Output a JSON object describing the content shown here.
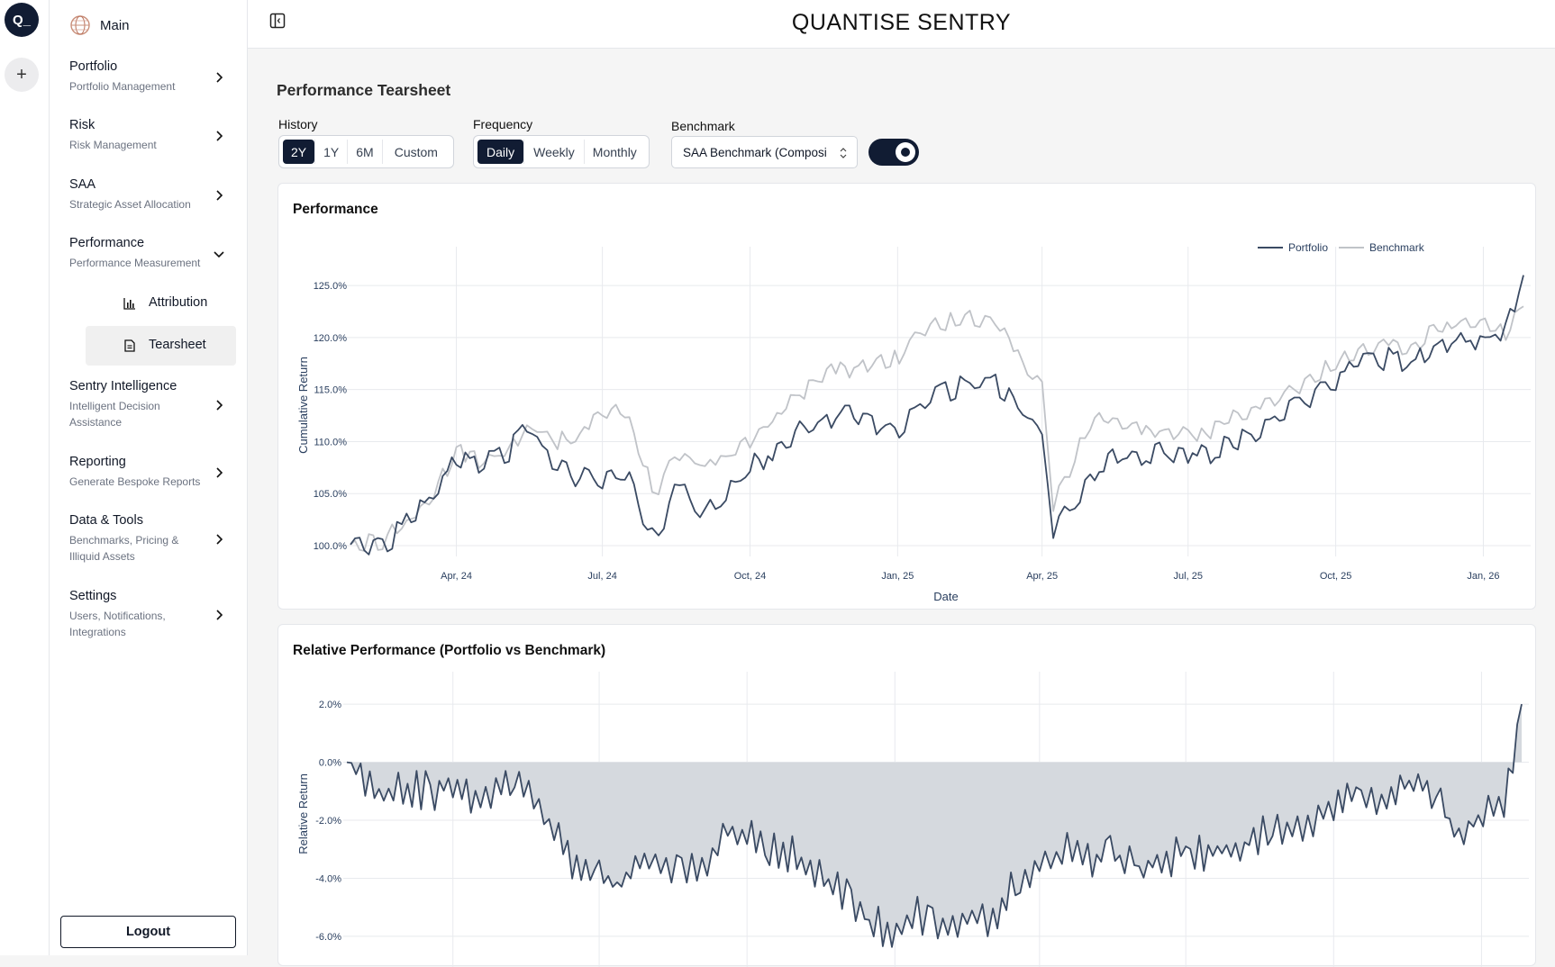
{
  "rail": {
    "logo_text": "Q_",
    "add_symbol": "+"
  },
  "sidebar": {
    "main_label": "Main",
    "items": [
      {
        "title": "Portfolio",
        "subtitle": "Portfolio Management"
      },
      {
        "title": "Risk",
        "subtitle": "Risk Management"
      },
      {
        "title": "SAA",
        "subtitle": "Strategic Asset Allocation"
      },
      {
        "title": "Performance",
        "subtitle": "Performance Measurement"
      },
      {
        "title": "Sentry Intelligence",
        "subtitle": "Intelligent Decision Assistance"
      },
      {
        "title": "Reporting",
        "subtitle": "Generate Bespoke Reports"
      },
      {
        "title": "Data & Tools",
        "subtitle": "Benchmarks, Pricing & Illiquid Assets"
      },
      {
        "title": "Settings",
        "subtitle": "Users, Notifications, Integrations"
      }
    ],
    "subitems": [
      {
        "label": "Attribution",
        "icon": "bar-chart-icon"
      },
      {
        "label": "Tearsheet",
        "icon": "document-icon"
      }
    ],
    "logout_label": "Logout"
  },
  "header": {
    "title": "QUANTISE SENTRY"
  },
  "page": {
    "title": "Performance Tearsheet"
  },
  "controls": {
    "history": {
      "label": "History",
      "options": [
        "2Y",
        "1Y",
        "6M",
        "Custom"
      ],
      "selected": "2Y"
    },
    "frequency": {
      "label": "Frequency",
      "options": [
        "Daily",
        "Weekly",
        "Monthly"
      ],
      "selected": "Daily"
    },
    "benchmark": {
      "label": "Benchmark",
      "value": "SAA Benchmark (Composi"
    },
    "toggle_on": true
  },
  "colors": {
    "portfolio": "#3a4a63",
    "benchmark": "#c0c3c8",
    "area_fill": "#d5d9de",
    "accent": "#111c33"
  },
  "chart_data": [
    {
      "type": "line",
      "title": "Performance",
      "xlabel": "Date",
      "ylabel": "Cumulative Return",
      "x_ticks": [
        "Apr, 24",
        "Jul, 24",
        "Oct, 24",
        "Jan, 25",
        "Apr, 25",
        "Jul, 25",
        "Oct, 25",
        "Jan, 26"
      ],
      "y_ticks": [
        "100.0%",
        "105.0%",
        "110.0%",
        "115.0%",
        "120.0%",
        "125.0%"
      ],
      "ylim": [
        100.0,
        127.0
      ],
      "legend_position": "top-right",
      "grid": true,
      "x": [
        "2024-01-26",
        "2024-02-15",
        "2024-03-01",
        "2024-03-15",
        "2024-04-01",
        "2024-04-15",
        "2024-05-01",
        "2024-05-15",
        "2024-06-03",
        "2024-06-17",
        "2024-07-01",
        "2024-07-15",
        "2024-08-01",
        "2024-08-05",
        "2024-08-15",
        "2024-09-03",
        "2024-09-16",
        "2024-10-01",
        "2024-10-15",
        "2024-11-01",
        "2024-11-15",
        "2024-12-02",
        "2024-12-16",
        "2025-01-02",
        "2025-01-15",
        "2025-02-03",
        "2025-02-18",
        "2025-03-03",
        "2025-03-17",
        "2025-04-01",
        "2025-04-08",
        "2025-04-15",
        "2025-05-01",
        "2025-05-15",
        "2025-06-02",
        "2025-06-16",
        "2025-07-01",
        "2025-07-15",
        "2025-08-01",
        "2025-08-15",
        "2025-09-02",
        "2025-09-15",
        "2025-10-01",
        "2025-10-15",
        "2025-11-03",
        "2025-11-17",
        "2025-12-01",
        "2025-12-15",
        "2026-01-02",
        "2026-01-15",
        "2026-01-26"
      ],
      "series": [
        {
          "name": "Portfolio",
          "values": [
            100.1,
            100.0,
            102.0,
            104.5,
            108.5,
            108.0,
            108.5,
            111.5,
            107.5,
            106.5,
            106.5,
            107.0,
            101.0,
            100.8,
            106.0,
            103.0,
            105.0,
            107.5,
            109.0,
            111.0,
            112.0,
            112.5,
            111.5,
            111.0,
            113.5,
            115.0,
            115.5,
            115.5,
            113.5,
            111.0,
            101.0,
            103.0,
            106.5,
            108.5,
            108.5,
            109.0,
            109.0,
            109.0,
            110.0,
            111.0,
            113.0,
            114.0,
            116.0,
            117.5,
            118.0,
            117.5,
            119.0,
            119.5,
            120.0,
            121.0,
            126.0
          ]
        },
        {
          "name": "Benchmark",
          "values": [
            100.1,
            100.4,
            102.3,
            104.5,
            109.0,
            108.3,
            108.8,
            111.5,
            110.0,
            110.5,
            112.5,
            113.0,
            105.5,
            105.0,
            109.0,
            107.5,
            108.5,
            110.0,
            112.0,
            114.5,
            116.5,
            117.0,
            117.5,
            118.0,
            120.5,
            121.5,
            122.0,
            121.5,
            118.0,
            115.5,
            104.0,
            106.0,
            112.0,
            112.0,
            111.0,
            111.0,
            110.5,
            111.0,
            112.5,
            113.5,
            115.0,
            116.0,
            117.5,
            118.5,
            119.5,
            119.0,
            120.5,
            121.5,
            121.0,
            120.5,
            123.0
          ]
        }
      ]
    },
    {
      "type": "area",
      "title": "Relative Performance (Portfolio vs Benchmark)",
      "ylabel": "Relative Return",
      "y_ticks": [
        "2.0%",
        "0.0%",
        "-2.0%",
        "-4.0%",
        "-6.0%"
      ],
      "ylim": [
        -6.5,
        2.5
      ],
      "grid": true,
      "x": [
        "2024-01-26",
        "2024-02-15",
        "2024-03-01",
        "2024-03-15",
        "2024-04-01",
        "2024-04-15",
        "2024-05-01",
        "2024-05-15",
        "2024-06-03",
        "2024-06-17",
        "2024-07-01",
        "2024-07-15",
        "2024-08-01",
        "2024-08-05",
        "2024-08-15",
        "2024-09-03",
        "2024-09-16",
        "2024-10-01",
        "2024-10-15",
        "2024-11-01",
        "2024-11-15",
        "2024-12-02",
        "2024-12-16",
        "2025-01-02",
        "2025-01-15",
        "2025-02-03",
        "2025-02-18",
        "2025-03-03",
        "2025-03-17",
        "2025-04-01",
        "2025-04-08",
        "2025-04-15",
        "2025-05-01",
        "2025-05-15",
        "2025-06-02",
        "2025-06-16",
        "2025-07-01",
        "2025-07-15",
        "2025-08-01",
        "2025-08-15",
        "2025-09-02",
        "2025-09-15",
        "2025-10-01",
        "2025-10-15",
        "2025-11-03",
        "2025-11-17",
        "2025-12-01",
        "2025-12-15",
        "2026-01-02",
        "2026-01-15",
        "2026-01-26"
      ],
      "values": [
        0.0,
        -1.0,
        -0.8,
        -1.0,
        -0.9,
        -1.2,
        -0.8,
        -0.5,
        -2.5,
        -3.8,
        -4.0,
        -4.2,
        -3.3,
        -3.5,
        -3.8,
        -3.5,
        -2.5,
        -2.6,
        -2.9,
        -3.2,
        -4.0,
        -4.5,
        -5.5,
        -6.0,
        -5.3,
        -5.5,
        -5.4,
        -5.5,
        -4.0,
        -3.6,
        -3.3,
        -3.0,
        -3.4,
        -3.2,
        -3.6,
        -3.3,
        -3.2,
        -3.2,
        -3.0,
        -2.6,
        -2.3,
        -2.0,
        -1.5,
        -1.3,
        -1.3,
        -0.8,
        -1.0,
        -2.4,
        -1.9,
        -1.6,
        2.0
      ]
    }
  ]
}
